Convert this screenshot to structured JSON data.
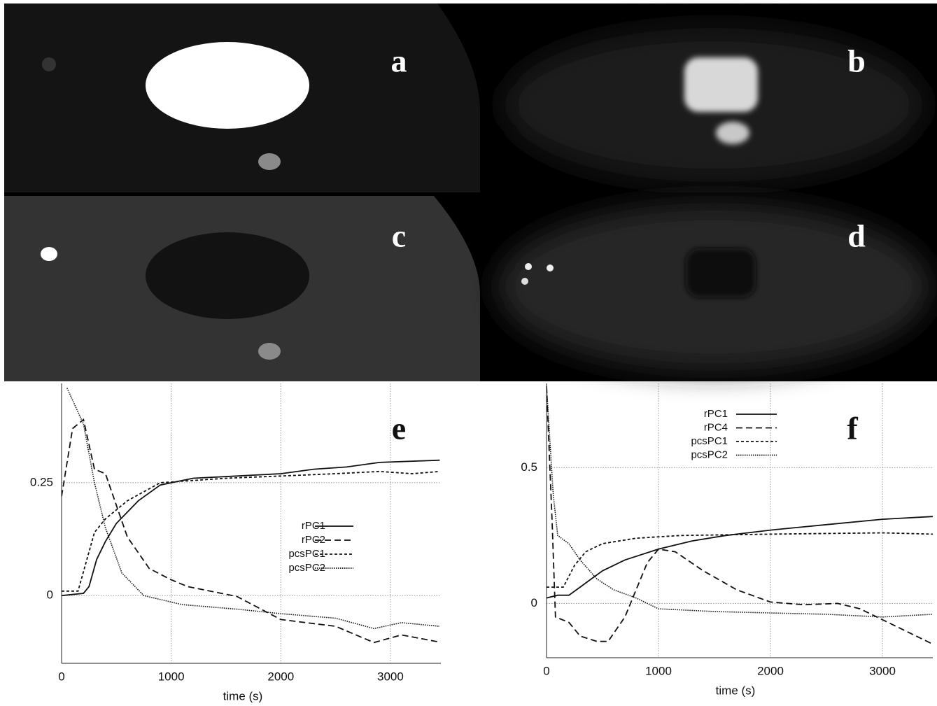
{
  "panels": [
    "a",
    "b",
    "c",
    "d"
  ],
  "chart_data": [
    {
      "type": "line",
      "panel_label": "e",
      "xlabel": "time (s)",
      "xlim": [
        0,
        3460
      ],
      "xticks": [
        0,
        1000,
        2000,
        3000
      ],
      "ylim": [
        -0.15,
        0.47
      ],
      "yticks": [
        0,
        0.25
      ],
      "grid": true,
      "series": [
        {
          "name": "rPC1",
          "style": "solid",
          "color": "#111111",
          "x": [
            0,
            200,
            250,
            320,
            400,
            500,
            700,
            900,
            1200,
            1600,
            2000,
            2300,
            2600,
            2900,
            3450
          ],
          "values": [
            0,
            0.005,
            0.02,
            0.08,
            0.12,
            0.16,
            0.21,
            0.245,
            0.26,
            0.265,
            0.27,
            0.28,
            0.285,
            0.295,
            0.3
          ]
        },
        {
          "name": "rPC2",
          "style": "dashed",
          "color": "#111111",
          "x": [
            0,
            100,
            200,
            300,
            400,
            500,
            600,
            800,
            1000,
            1150,
            1600,
            2000,
            2500,
            2850,
            3100,
            3450
          ],
          "values": [
            0.22,
            0.37,
            0.39,
            0.28,
            0.27,
            0.2,
            0.13,
            0.06,
            0.035,
            0.02,
            -0.002,
            -0.053,
            -0.068,
            -0.104,
            -0.087,
            -0.103
          ]
        },
        {
          "name": "pcsPC1",
          "style": "short-dashed",
          "color": "#111111",
          "x": [
            0,
            150,
            300,
            400,
            600,
            900,
            1500,
            2000,
            2500,
            2900,
            3200,
            3450
          ],
          "values": [
            0.01,
            0.01,
            0.14,
            0.17,
            0.21,
            0.25,
            0.26,
            0.265,
            0.27,
            0.275,
            0.27,
            0.275
          ]
        },
        {
          "name": "pcsPC2",
          "style": "dotted",
          "color": "#111111",
          "x": [
            50,
            200,
            300,
            400,
            550,
            750,
            1100,
            1600,
            2000,
            2500,
            2850,
            3100,
            3450
          ],
          "values": [
            0.46,
            0.38,
            0.25,
            0.15,
            0.05,
            0.0,
            -0.02,
            -0.03,
            -0.04,
            -0.05,
            -0.073,
            -0.06,
            -0.068
          ]
        }
      ]
    },
    {
      "type": "line",
      "panel_label": "f",
      "xlabel": "time (s)",
      "xlim": [
        0,
        3450
      ],
      "xticks": [
        0,
        1000,
        2000,
        3000
      ],
      "ylim": [
        -0.2,
        0.81
      ],
      "yticks": [
        0,
        0.5
      ],
      "grid": true,
      "series": [
        {
          "name": "rPC1",
          "style": "solid",
          "color": "#111111",
          "x": [
            0,
            100,
            200,
            300,
            400,
            500,
            700,
            1000,
            1300,
            1600,
            2000,
            2500,
            3000,
            3450
          ],
          "values": [
            0.02,
            0.03,
            0.03,
            0.06,
            0.09,
            0.12,
            0.16,
            0.2,
            0.23,
            0.25,
            0.27,
            0.29,
            0.31,
            0.32
          ]
        },
        {
          "name": "rPC4",
          "style": "dashed",
          "color": "#111111",
          "x": [
            0,
            50,
            80,
            200,
            300,
            450,
            550,
            700,
            900,
            1000,
            1150,
            1400,
            1700,
            2000,
            2300,
            2600,
            2800,
            3100,
            3450
          ],
          "values": [
            0.8,
            0.3,
            -0.05,
            -0.07,
            -0.12,
            -0.14,
            -0.14,
            -0.05,
            0.15,
            0.2,
            0.19,
            0.12,
            0.05,
            0.005,
            -0.005,
            0.0,
            -0.02,
            -0.08,
            -0.15
          ]
        },
        {
          "name": "pcsPC1",
          "style": "short-dashed",
          "color": "#111111",
          "x": [
            0,
            150,
            250,
            350,
            500,
            800,
            1200,
            2000,
            3000,
            3450
          ],
          "values": [
            0.06,
            0.06,
            0.14,
            0.19,
            0.22,
            0.24,
            0.25,
            0.255,
            0.26,
            0.255
          ]
        },
        {
          "name": "pcsPC2",
          "style": "dotted",
          "color": "#111111",
          "x": [
            0,
            60,
            100,
            200,
            300,
            450,
            600,
            800,
            1000,
            1500,
            2000,
            2500,
            3000,
            3450
          ],
          "values": [
            0.8,
            0.4,
            0.25,
            0.22,
            0.16,
            0.09,
            0.05,
            0.02,
            -0.02,
            -0.03,
            -0.035,
            -0.04,
            -0.05,
            -0.04
          ]
        }
      ]
    }
  ]
}
